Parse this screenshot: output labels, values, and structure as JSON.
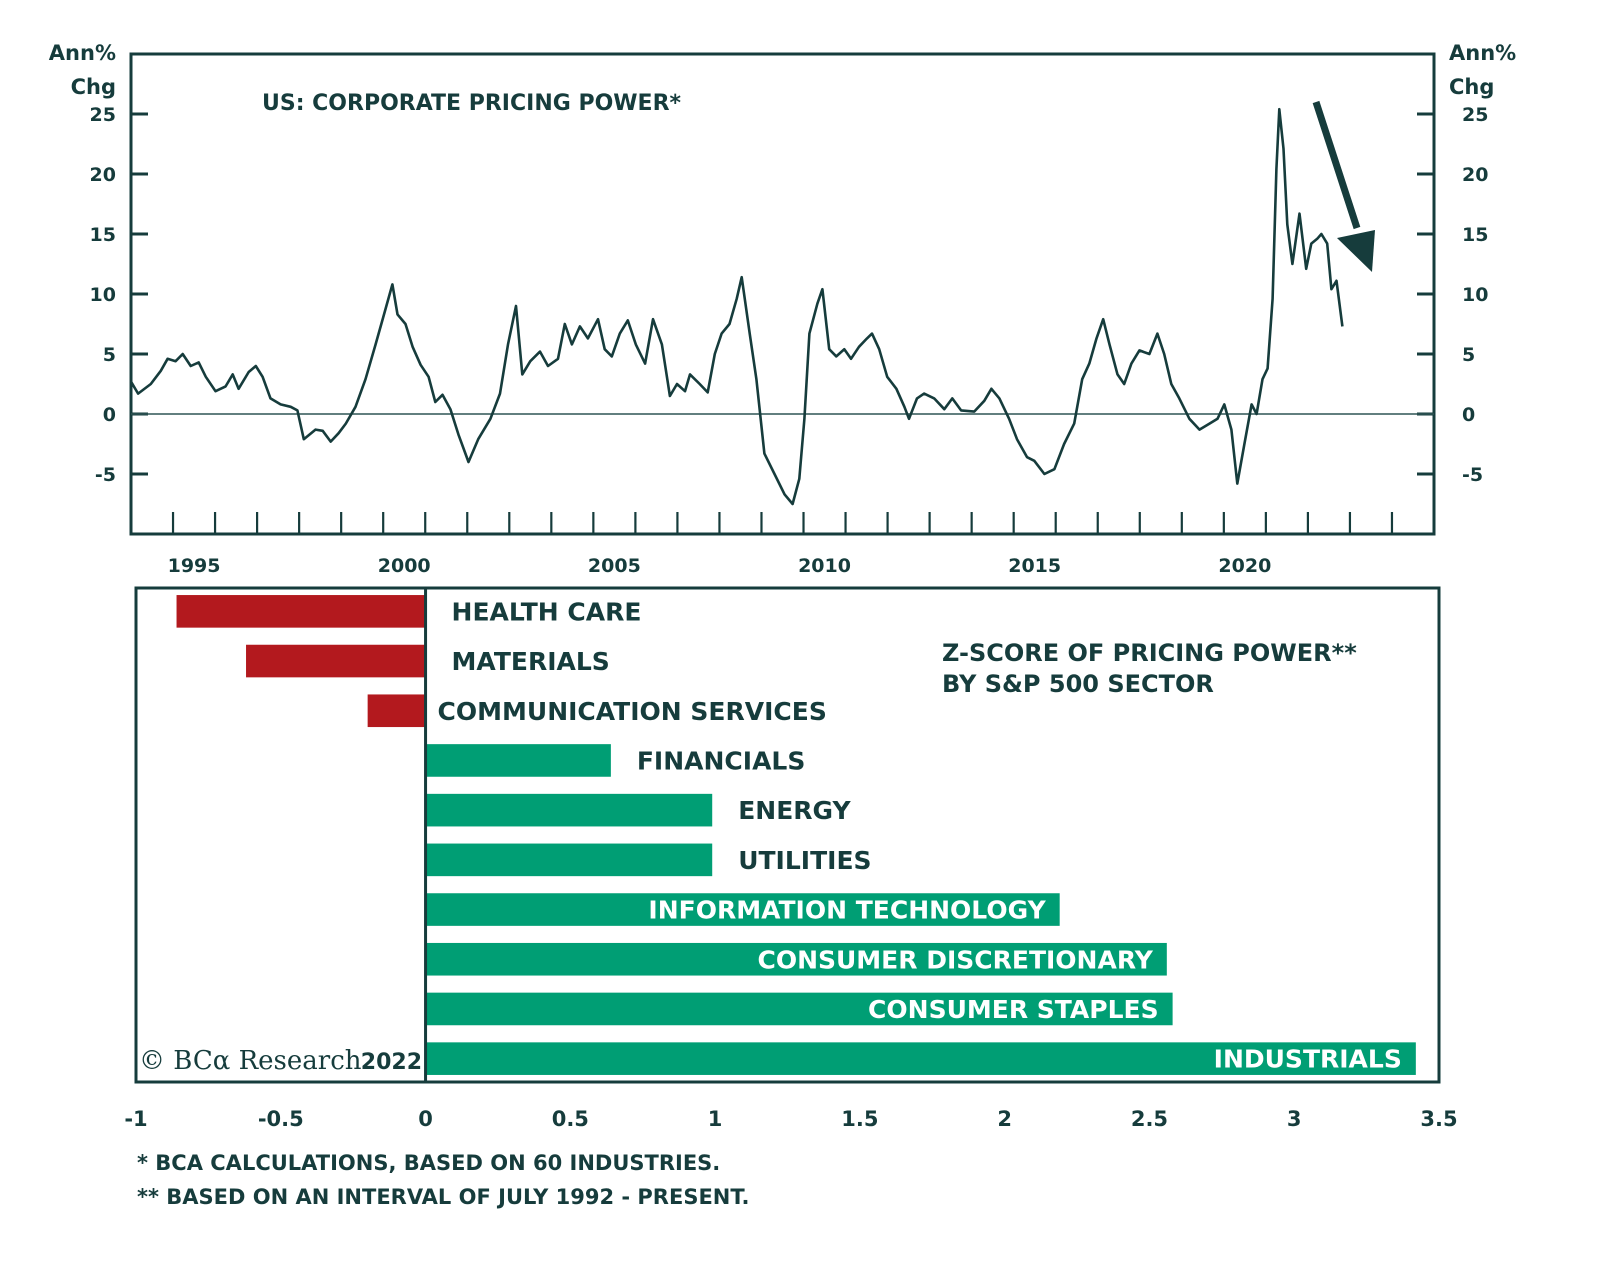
{
  "chart_data": [
    {
      "type": "line",
      "title": "US: CORPORATE PRICING POWER*",
      "ylabel_left": [
        "Ann%",
        "Chg"
      ],
      "ylabel_right": [
        "Ann%",
        "Chg"
      ],
      "xlabel": "",
      "ylim": [
        -10,
        30
      ],
      "xlim": [
        1994,
        2025
      ],
      "y_ticks": [
        25,
        20,
        15,
        10,
        5,
        0,
        -5
      ],
      "x_tick_labels": [
        {
          "label": "1995",
          "at": 1995.5
        },
        {
          "label": "2000",
          "at": 2000.5
        },
        {
          "label": "2005",
          "at": 2005.5
        },
        {
          "label": "2010",
          "at": 2010.5
        },
        {
          "label": "2015",
          "at": 2015.5
        },
        {
          "label": "2020",
          "at": 2020.5
        }
      ],
      "x_minor_ticks_every_year_from": 1995,
      "x_minor_ticks_every_year_to": 2024,
      "zero_line": true,
      "grid": false,
      "annotation": "down-arrow after latest value (declining trend)",
      "series": [
        {
          "name": "US corporate pricing power",
          "color": "#163c3c",
          "points": [
            [
              1994.0,
              2.7
            ],
            [
              1994.17,
              1.7
            ],
            [
              1994.47,
              2.5
            ],
            [
              1994.71,
              3.6
            ],
            [
              1994.87,
              4.6
            ],
            [
              1995.06,
              4.4
            ],
            [
              1995.23,
              5.0
            ],
            [
              1995.42,
              4.0
            ],
            [
              1995.61,
              4.3
            ],
            [
              1995.78,
              3.1
            ],
            [
              1996.01,
              1.9
            ],
            [
              1996.25,
              2.3
            ],
            [
              1996.42,
              3.3
            ],
            [
              1996.56,
              2.1
            ],
            [
              1996.8,
              3.5
            ],
            [
              1996.97,
              4.0
            ],
            [
              1997.13,
              3.1
            ],
            [
              1997.32,
              1.3
            ],
            [
              1997.56,
              0.8
            ],
            [
              1997.8,
              0.6
            ],
            [
              1997.96,
              0.3
            ],
            [
              1998.11,
              -2.1
            ],
            [
              1998.39,
              -1.3
            ],
            [
              1998.56,
              -1.4
            ],
            [
              1998.75,
              -2.3
            ],
            [
              1998.94,
              -1.6
            ],
            [
              1999.11,
              -0.8
            ],
            [
              1999.34,
              0.6
            ],
            [
              1999.58,
              2.9
            ],
            [
              1999.82,
              5.8
            ],
            [
              2000.06,
              8.8
            ],
            [
              2000.22,
              10.8
            ],
            [
              2000.34,
              8.3
            ],
            [
              2000.53,
              7.5
            ],
            [
              2000.7,
              5.6
            ],
            [
              2000.89,
              4.1
            ],
            [
              2001.08,
              3.1
            ],
            [
              2001.24,
              1.0
            ],
            [
              2001.41,
              1.6
            ],
            [
              2001.6,
              0.4
            ],
            [
              2001.79,
              -1.7
            ],
            [
              2002.03,
              -4.0
            ],
            [
              2002.26,
              -2.1
            ],
            [
              2002.55,
              -0.4
            ],
            [
              2002.78,
              1.7
            ],
            [
              2002.97,
              5.8
            ],
            [
              2003.16,
              9.0
            ],
            [
              2003.31,
              3.3
            ],
            [
              2003.5,
              4.4
            ],
            [
              2003.73,
              5.2
            ],
            [
              2003.92,
              4.0
            ],
            [
              2004.16,
              4.6
            ],
            [
              2004.32,
              7.5
            ],
            [
              2004.49,
              5.8
            ],
            [
              2004.68,
              7.3
            ],
            [
              2004.87,
              6.3
            ],
            [
              2005.11,
              7.9
            ],
            [
              2005.27,
              5.4
            ],
            [
              2005.44,
              4.8
            ],
            [
              2005.63,
              6.7
            ],
            [
              2005.82,
              7.8
            ],
            [
              2006.01,
              5.8
            ],
            [
              2006.23,
              4.2
            ],
            [
              2006.42,
              7.9
            ],
            [
              2006.63,
              5.8
            ],
            [
              2006.82,
              1.5
            ],
            [
              2006.99,
              2.5
            ],
            [
              2007.18,
              1.9
            ],
            [
              2007.3,
              3.3
            ],
            [
              2007.53,
              2.5
            ],
            [
              2007.72,
              1.8
            ],
            [
              2007.89,
              5.0
            ],
            [
              2008.05,
              6.7
            ],
            [
              2008.24,
              7.5
            ],
            [
              2008.41,
              9.6
            ],
            [
              2008.53,
              11.4
            ],
            [
              2008.72,
              6.7
            ],
            [
              2008.88,
              2.9
            ],
            [
              2009.07,
              -3.3
            ],
            [
              2009.31,
              -5.0
            ],
            [
              2009.55,
              -6.7
            ],
            [
              2009.74,
              -7.5
            ],
            [
              2009.9,
              -5.4
            ],
            [
              2010.02,
              -0.4
            ],
            [
              2010.14,
              6.7
            ],
            [
              2010.33,
              9.2
            ],
            [
              2010.45,
              10.4
            ],
            [
              2010.61,
              5.4
            ],
            [
              2010.78,
              4.8
            ],
            [
              2010.97,
              5.4
            ],
            [
              2011.13,
              4.6
            ],
            [
              2011.32,
              5.6
            ],
            [
              2011.51,
              6.3
            ],
            [
              2011.63,
              6.7
            ],
            [
              2011.8,
              5.4
            ],
            [
              2011.99,
              3.1
            ],
            [
              2012.21,
              2.1
            ],
            [
              2012.4,
              0.6
            ],
            [
              2012.51,
              -0.4
            ],
            [
              2012.7,
              1.3
            ],
            [
              2012.87,
              1.7
            ],
            [
              2013.11,
              1.3
            ],
            [
              2013.35,
              0.4
            ],
            [
              2013.54,
              1.3
            ],
            [
              2013.75,
              0.3
            ],
            [
              2014.06,
              0.2
            ],
            [
              2014.3,
              1.1
            ],
            [
              2014.47,
              2.1
            ],
            [
              2014.66,
              1.3
            ],
            [
              2014.89,
              -0.4
            ],
            [
              2015.08,
              -2.1
            ],
            [
              2015.32,
              -3.6
            ],
            [
              2015.49,
              -3.9
            ],
            [
              2015.73,
              -5.0
            ],
            [
              2015.97,
              -4.6
            ],
            [
              2016.2,
              -2.5
            ],
            [
              2016.44,
              -0.8
            ],
            [
              2016.63,
              2.9
            ],
            [
              2016.8,
              4.2
            ],
            [
              2016.97,
              6.3
            ],
            [
              2017.13,
              7.9
            ],
            [
              2017.28,
              5.8
            ],
            [
              2017.47,
              3.3
            ],
            [
              2017.63,
              2.5
            ],
            [
              2017.8,
              4.2
            ],
            [
              2017.99,
              5.3
            ],
            [
              2018.23,
              5.0
            ],
            [
              2018.42,
              6.7
            ],
            [
              2018.58,
              5.0
            ],
            [
              2018.75,
              2.5
            ],
            [
              2018.94,
              1.3
            ],
            [
              2019.18,
              -0.4
            ],
            [
              2019.42,
              -1.3
            ],
            [
              2019.66,
              -0.8
            ],
            [
              2019.85,
              -0.4
            ],
            [
              2020.01,
              0.8
            ],
            [
              2020.18,
              -1.3
            ],
            [
              2020.32,
              -5.8
            ],
            [
              2020.49,
              -2.5
            ],
            [
              2020.66,
              0.8
            ],
            [
              2020.78,
              0.0
            ],
            [
              2020.92,
              2.9
            ],
            [
              2021.04,
              3.8
            ],
            [
              2021.16,
              9.6
            ],
            [
              2021.25,
              20.4
            ],
            [
              2021.32,
              25.4
            ],
            [
              2021.42,
              22.1
            ],
            [
              2021.51,
              15.8
            ],
            [
              2021.63,
              12.5
            ],
            [
              2021.8,
              16.7
            ],
            [
              2021.96,
              12.1
            ],
            [
              2022.08,
              14.2
            ],
            [
              2022.22,
              14.6
            ],
            [
              2022.32,
              15.0
            ],
            [
              2022.46,
              14.2
            ],
            [
              2022.56,
              10.4
            ],
            [
              2022.68,
              11.1
            ],
            [
              2022.82,
              7.3
            ]
          ]
        }
      ]
    },
    {
      "type": "bar",
      "orientation": "horizontal",
      "title": [
        "Z-SCORE OF PRICING POWER**",
        "BY S&P 500 SECTOR"
      ],
      "xlim": [
        -1,
        3.5
      ],
      "x_ticks": [
        "-1",
        "-0.5",
        "0",
        "0.5",
        "1",
        "1.5",
        "2",
        "2.5",
        "3",
        "3.5"
      ],
      "x_tick_values": [
        -1,
        -0.5,
        0,
        0.5,
        1,
        1.5,
        2,
        2.5,
        3,
        3.5
      ],
      "grid": false,
      "colors": {
        "negative": "#b3191e",
        "positive": "#009e74"
      },
      "categories": [
        "HEALTH CARE",
        "MATERIALS",
        "COMMUNICATION SERVICES",
        "FINANCIALS",
        "ENERGY",
        "UTILITIES",
        "INFORMATION TECHNOLOGY",
        "CONSUMER DISCRETIONARY",
        "CONSUMER STAPLES",
        "INDUSTRIALS"
      ],
      "values": [
        -0.86,
        -0.62,
        -0.2,
        0.64,
        0.99,
        0.99,
        2.19,
        2.56,
        2.58,
        3.42
      ]
    }
  ],
  "footnotes": [
    "* BCA CALCULATIONS, BASED ON 60 INDUSTRIES.",
    "** BASED ON AN INTERVAL OF JULY 1992 - PRESENT."
  ],
  "brand": {
    "name": "© BCα Research",
    "year": "2022"
  }
}
